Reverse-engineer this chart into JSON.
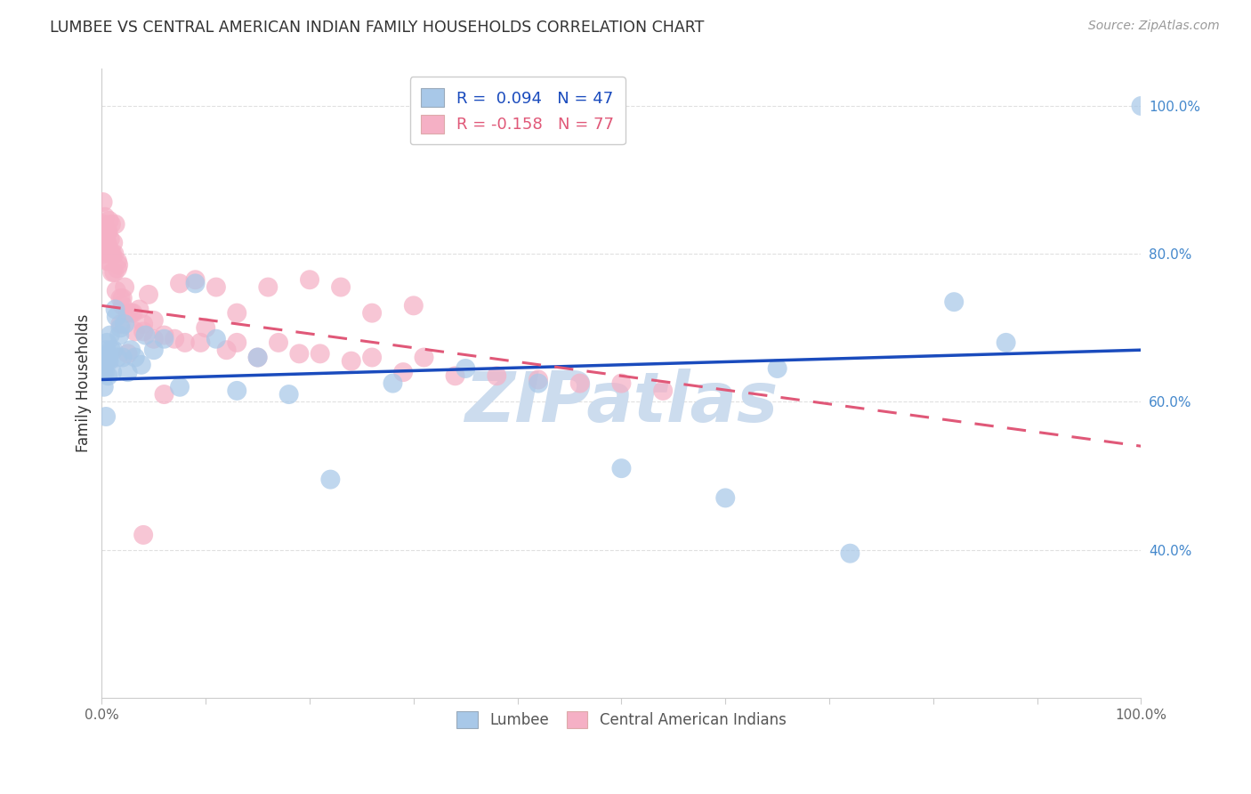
{
  "title": "LUMBEE VS CENTRAL AMERICAN INDIAN FAMILY HOUSEHOLDS CORRELATION CHART",
  "source": "Source: ZipAtlas.com",
  "ylabel": "Family Households",
  "r_lumbee": 0.094,
  "n_lumbee": 47,
  "r_central": -0.158,
  "n_central": 77,
  "blue_color": "#a8c8e8",
  "pink_color": "#f5b0c5",
  "blue_line_color": "#1a4bbd",
  "pink_line_color": "#e05878",
  "lumbee_x": [
    0.001,
    0.002,
    0.002,
    0.003,
    0.003,
    0.004,
    0.004,
    0.005,
    0.005,
    0.006,
    0.006,
    0.007,
    0.008,
    0.009,
    0.01,
    0.011,
    0.013,
    0.014,
    0.015,
    0.017,
    0.018,
    0.02,
    0.022,
    0.025,
    0.028,
    0.032,
    0.038,
    0.042,
    0.05,
    0.06,
    0.075,
    0.09,
    0.11,
    0.13,
    0.15,
    0.18,
    0.22,
    0.28,
    0.35,
    0.42,
    0.5,
    0.6,
    0.65,
    0.72,
    0.82,
    0.87,
    1.0
  ],
  "lumbee_y": [
    0.64,
    0.62,
    0.66,
    0.66,
    0.64,
    0.67,
    0.58,
    0.655,
    0.68,
    0.635,
    0.66,
    0.655,
    0.69,
    0.67,
    0.64,
    0.67,
    0.725,
    0.715,
    0.66,
    0.69,
    0.7,
    0.66,
    0.705,
    0.64,
    0.67,
    0.66,
    0.65,
    0.69,
    0.67,
    0.685,
    0.62,
    0.76,
    0.685,
    0.615,
    0.66,
    0.61,
    0.495,
    0.625,
    0.645,
    0.625,
    0.51,
    0.47,
    0.645,
    0.395,
    0.735,
    0.68,
    1.0
  ],
  "central_x": [
    0.001,
    0.001,
    0.002,
    0.002,
    0.003,
    0.003,
    0.003,
    0.004,
    0.004,
    0.005,
    0.005,
    0.005,
    0.006,
    0.006,
    0.007,
    0.007,
    0.008,
    0.009,
    0.009,
    0.01,
    0.011,
    0.012,
    0.013,
    0.014,
    0.015,
    0.016,
    0.018,
    0.02,
    0.022,
    0.025,
    0.028,
    0.032,
    0.036,
    0.04,
    0.045,
    0.05,
    0.06,
    0.075,
    0.09,
    0.11,
    0.13,
    0.16,
    0.2,
    0.23,
    0.26,
    0.3,
    0.01,
    0.012,
    0.015,
    0.018,
    0.02,
    0.025,
    0.03,
    0.04,
    0.05,
    0.06,
    0.08,
    0.1,
    0.13,
    0.17,
    0.21,
    0.26,
    0.31,
    0.07,
    0.095,
    0.12,
    0.15,
    0.19,
    0.24,
    0.29,
    0.34,
    0.38,
    0.42,
    0.46,
    0.5,
    0.54,
    0.04
  ],
  "central_y": [
    0.82,
    0.87,
    0.8,
    0.84,
    0.81,
    0.85,
    0.835,
    0.81,
    0.82,
    0.83,
    0.815,
    0.79,
    0.83,
    0.81,
    0.845,
    0.79,
    0.82,
    0.8,
    0.84,
    0.8,
    0.815,
    0.8,
    0.84,
    0.75,
    0.79,
    0.785,
    0.705,
    0.74,
    0.755,
    0.72,
    0.72,
    0.695,
    0.725,
    0.705,
    0.745,
    0.71,
    0.61,
    0.76,
    0.765,
    0.755,
    0.72,
    0.755,
    0.765,
    0.755,
    0.72,
    0.73,
    0.775,
    0.775,
    0.78,
    0.74,
    0.73,
    0.665,
    0.72,
    0.695,
    0.685,
    0.69,
    0.68,
    0.7,
    0.68,
    0.68,
    0.665,
    0.66,
    0.66,
    0.685,
    0.68,
    0.67,
    0.66,
    0.665,
    0.655,
    0.64,
    0.635,
    0.635,
    0.63,
    0.625,
    0.625,
    0.615,
    0.42
  ],
  "blue_trend_x0": 0.0,
  "blue_trend_y0": 0.63,
  "blue_trend_x1": 1.0,
  "blue_trend_y1": 0.67,
  "pink_trend_x0": 0.0,
  "pink_trend_y0": 0.73,
  "pink_trend_x1": 1.0,
  "pink_trend_y1": 0.54,
  "xlim": [
    0.0,
    1.0
  ],
  "ylim": [
    0.2,
    1.05
  ],
  "yticks": [
    0.4,
    0.6,
    0.8,
    1.0
  ],
  "ytick_labels": [
    "40.0%",
    "60.0%",
    "80.0%",
    "100.0%"
  ],
  "xticks": [
    0.0,
    0.1,
    0.2,
    0.3,
    0.4,
    0.5,
    0.6,
    0.7,
    0.8,
    0.9,
    1.0
  ],
  "xtick_labels": [
    "0.0%",
    "",
    "",
    "",
    "",
    "",
    "",
    "",
    "",
    "",
    "100.0%"
  ],
  "background_color": "#ffffff",
  "grid_color": "#e0e0e0",
  "watermark": "ZIPatlas",
  "watermark_color": "#ccdcee"
}
